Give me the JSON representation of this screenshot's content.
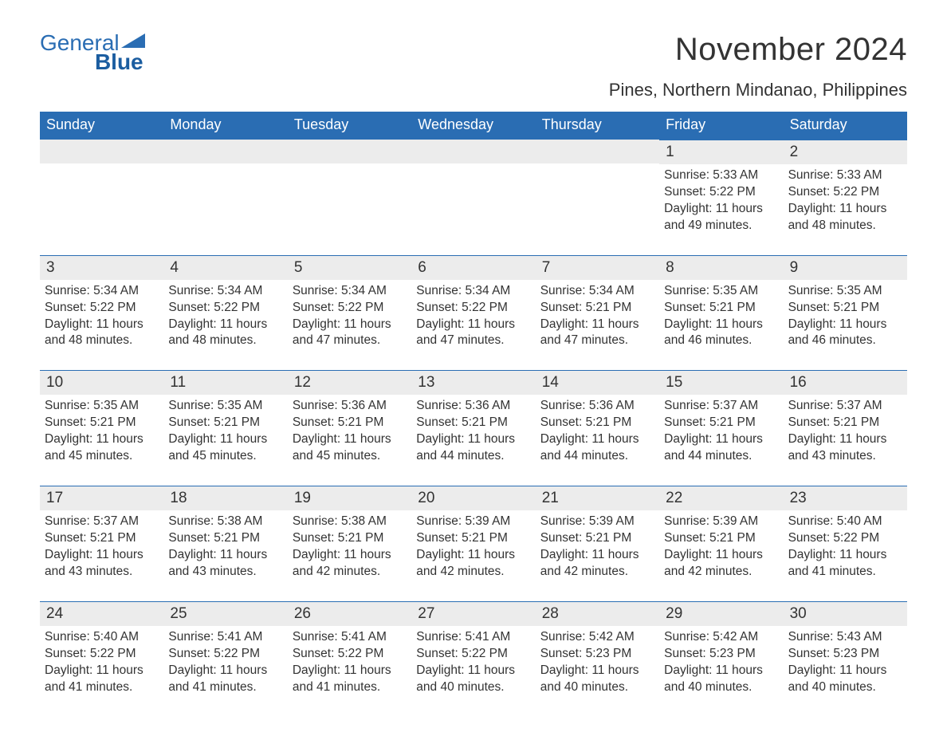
{
  "brand": {
    "name_part1": "General",
    "name_part2": "Blue",
    "brand_color": "#2a6db3"
  },
  "title": "November 2024",
  "location": "Pines, Northern Mindanao, Philippines",
  "colors": {
    "header_bg": "#2a6db3",
    "header_text": "#ffffff",
    "date_bg": "#ececec",
    "date_border": "#2a6db3",
    "body_text": "#333333",
    "background": "#ffffff"
  },
  "layout": {
    "columns": 7,
    "rows": 5,
    "header_fontsize": 18,
    "title_fontsize": 40,
    "location_fontsize": 22,
    "date_fontsize": 19,
    "detail_fontsize": 15.5
  },
  "day_headers": [
    "Sunday",
    "Monday",
    "Tuesday",
    "Wednesday",
    "Thursday",
    "Friday",
    "Saturday"
  ],
  "weeks": [
    [
      {
        "date": "",
        "sunrise": "",
        "sunset": "",
        "daylight": ""
      },
      {
        "date": "",
        "sunrise": "",
        "sunset": "",
        "daylight": ""
      },
      {
        "date": "",
        "sunrise": "",
        "sunset": "",
        "daylight": ""
      },
      {
        "date": "",
        "sunrise": "",
        "sunset": "",
        "daylight": ""
      },
      {
        "date": "",
        "sunrise": "",
        "sunset": "",
        "daylight": ""
      },
      {
        "date": "1",
        "sunrise": "Sunrise: 5:33 AM",
        "sunset": "Sunset: 5:22 PM",
        "daylight": "Daylight: 11 hours and 49 minutes."
      },
      {
        "date": "2",
        "sunrise": "Sunrise: 5:33 AM",
        "sunset": "Sunset: 5:22 PM",
        "daylight": "Daylight: 11 hours and 48 minutes."
      }
    ],
    [
      {
        "date": "3",
        "sunrise": "Sunrise: 5:34 AM",
        "sunset": "Sunset: 5:22 PM",
        "daylight": "Daylight: 11 hours and 48 minutes."
      },
      {
        "date": "4",
        "sunrise": "Sunrise: 5:34 AM",
        "sunset": "Sunset: 5:22 PM",
        "daylight": "Daylight: 11 hours and 48 minutes."
      },
      {
        "date": "5",
        "sunrise": "Sunrise: 5:34 AM",
        "sunset": "Sunset: 5:22 PM",
        "daylight": "Daylight: 11 hours and 47 minutes."
      },
      {
        "date": "6",
        "sunrise": "Sunrise: 5:34 AM",
        "sunset": "Sunset: 5:22 PM",
        "daylight": "Daylight: 11 hours and 47 minutes."
      },
      {
        "date": "7",
        "sunrise": "Sunrise: 5:34 AM",
        "sunset": "Sunset: 5:21 PM",
        "daylight": "Daylight: 11 hours and 47 minutes."
      },
      {
        "date": "8",
        "sunrise": "Sunrise: 5:35 AM",
        "sunset": "Sunset: 5:21 PM",
        "daylight": "Daylight: 11 hours and 46 minutes."
      },
      {
        "date": "9",
        "sunrise": "Sunrise: 5:35 AM",
        "sunset": "Sunset: 5:21 PM",
        "daylight": "Daylight: 11 hours and 46 minutes."
      }
    ],
    [
      {
        "date": "10",
        "sunrise": "Sunrise: 5:35 AM",
        "sunset": "Sunset: 5:21 PM",
        "daylight": "Daylight: 11 hours and 45 minutes."
      },
      {
        "date": "11",
        "sunrise": "Sunrise: 5:35 AM",
        "sunset": "Sunset: 5:21 PM",
        "daylight": "Daylight: 11 hours and 45 minutes."
      },
      {
        "date": "12",
        "sunrise": "Sunrise: 5:36 AM",
        "sunset": "Sunset: 5:21 PM",
        "daylight": "Daylight: 11 hours and 45 minutes."
      },
      {
        "date": "13",
        "sunrise": "Sunrise: 5:36 AM",
        "sunset": "Sunset: 5:21 PM",
        "daylight": "Daylight: 11 hours and 44 minutes."
      },
      {
        "date": "14",
        "sunrise": "Sunrise: 5:36 AM",
        "sunset": "Sunset: 5:21 PM",
        "daylight": "Daylight: 11 hours and 44 minutes."
      },
      {
        "date": "15",
        "sunrise": "Sunrise: 5:37 AM",
        "sunset": "Sunset: 5:21 PM",
        "daylight": "Daylight: 11 hours and 44 minutes."
      },
      {
        "date": "16",
        "sunrise": "Sunrise: 5:37 AM",
        "sunset": "Sunset: 5:21 PM",
        "daylight": "Daylight: 11 hours and 43 minutes."
      }
    ],
    [
      {
        "date": "17",
        "sunrise": "Sunrise: 5:37 AM",
        "sunset": "Sunset: 5:21 PM",
        "daylight": "Daylight: 11 hours and 43 minutes."
      },
      {
        "date": "18",
        "sunrise": "Sunrise: 5:38 AM",
        "sunset": "Sunset: 5:21 PM",
        "daylight": "Daylight: 11 hours and 43 minutes."
      },
      {
        "date": "19",
        "sunrise": "Sunrise: 5:38 AM",
        "sunset": "Sunset: 5:21 PM",
        "daylight": "Daylight: 11 hours and 42 minutes."
      },
      {
        "date": "20",
        "sunrise": "Sunrise: 5:39 AM",
        "sunset": "Sunset: 5:21 PM",
        "daylight": "Daylight: 11 hours and 42 minutes."
      },
      {
        "date": "21",
        "sunrise": "Sunrise: 5:39 AM",
        "sunset": "Sunset: 5:21 PM",
        "daylight": "Daylight: 11 hours and 42 minutes."
      },
      {
        "date": "22",
        "sunrise": "Sunrise: 5:39 AM",
        "sunset": "Sunset: 5:21 PM",
        "daylight": "Daylight: 11 hours and 42 minutes."
      },
      {
        "date": "23",
        "sunrise": "Sunrise: 5:40 AM",
        "sunset": "Sunset: 5:22 PM",
        "daylight": "Daylight: 11 hours and 41 minutes."
      }
    ],
    [
      {
        "date": "24",
        "sunrise": "Sunrise: 5:40 AM",
        "sunset": "Sunset: 5:22 PM",
        "daylight": "Daylight: 11 hours and 41 minutes."
      },
      {
        "date": "25",
        "sunrise": "Sunrise: 5:41 AM",
        "sunset": "Sunset: 5:22 PM",
        "daylight": "Daylight: 11 hours and 41 minutes."
      },
      {
        "date": "26",
        "sunrise": "Sunrise: 5:41 AM",
        "sunset": "Sunset: 5:22 PM",
        "daylight": "Daylight: 11 hours and 41 minutes."
      },
      {
        "date": "27",
        "sunrise": "Sunrise: 5:41 AM",
        "sunset": "Sunset: 5:22 PM",
        "daylight": "Daylight: 11 hours and 40 minutes."
      },
      {
        "date": "28",
        "sunrise": "Sunrise: 5:42 AM",
        "sunset": "Sunset: 5:23 PM",
        "daylight": "Daylight: 11 hours and 40 minutes."
      },
      {
        "date": "29",
        "sunrise": "Sunrise: 5:42 AM",
        "sunset": "Sunset: 5:23 PM",
        "daylight": "Daylight: 11 hours and 40 minutes."
      },
      {
        "date": "30",
        "sunrise": "Sunrise: 5:43 AM",
        "sunset": "Sunset: 5:23 PM",
        "daylight": "Daylight: 11 hours and 40 minutes."
      }
    ]
  ]
}
